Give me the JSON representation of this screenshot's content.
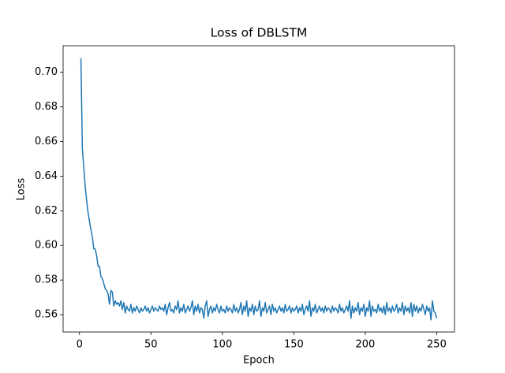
{
  "chart_data": {
    "type": "line",
    "title": "Loss of DBLSTM",
    "xlabel": "Epoch",
    "ylabel": "Loss",
    "x": [
      1,
      2,
      3,
      4,
      5,
      6,
      7,
      8,
      9,
      10,
      11,
      12,
      13,
      14,
      15,
      16,
      17,
      18,
      19,
      20,
      21,
      22,
      23,
      24,
      25,
      26,
      27,
      28,
      29,
      30,
      31,
      32,
      33,
      34,
      35,
      36,
      37,
      38,
      39,
      40,
      41,
      42,
      43,
      44,
      45,
      46,
      47,
      48,
      49,
      50,
      51,
      52,
      53,
      54,
      55,
      56,
      57,
      58,
      59,
      60,
      61,
      62,
      63,
      64,
      65,
      66,
      67,
      68,
      69,
      70,
      71,
      72,
      73,
      74,
      75,
      76,
      77,
      78,
      79,
      80,
      81,
      82,
      83,
      84,
      85,
      86,
      87,
      88,
      89,
      90,
      91,
      92,
      93,
      94,
      95,
      96,
      97,
      98,
      99,
      100,
      101,
      102,
      103,
      104,
      105,
      106,
      107,
      108,
      109,
      110,
      111,
      112,
      113,
      114,
      115,
      116,
      117,
      118,
      119,
      120,
      121,
      122,
      123,
      124,
      125,
      126,
      127,
      128,
      129,
      130,
      131,
      132,
      133,
      134,
      135,
      136,
      137,
      138,
      139,
      140,
      141,
      142,
      143,
      144,
      145,
      146,
      147,
      148,
      149,
      150,
      151,
      152,
      153,
      154,
      155,
      156,
      157,
      158,
      159,
      160,
      161,
      162,
      163,
      164,
      165,
      166,
      167,
      168,
      169,
      170,
      171,
      172,
      173,
      174,
      175,
      176,
      177,
      178,
      179,
      180,
      181,
      182,
      183,
      184,
      185,
      186,
      187,
      188,
      189,
      190,
      191,
      192,
      193,
      194,
      195,
      196,
      197,
      198,
      199,
      200,
      201,
      202,
      203,
      204,
      205,
      206,
      207,
      208,
      209,
      210,
      211,
      212,
      213,
      214,
      215,
      216,
      217,
      218,
      219,
      220,
      221,
      222,
      223,
      224,
      225,
      226,
      227,
      228,
      229,
      230,
      231,
      232,
      233,
      234,
      235,
      236,
      237,
      238,
      239,
      240,
      241,
      242,
      243,
      244,
      245,
      246,
      247,
      248,
      249,
      250
    ],
    "series": [
      {
        "color": "#1f77b4",
        "values": [
          0.708,
          0.656,
          0.645,
          0.634,
          0.626,
          0.619,
          0.614,
          0.609,
          0.605,
          0.598,
          0.598,
          0.594,
          0.588,
          0.588,
          0.582,
          0.581,
          0.578,
          0.575,
          0.574,
          0.572,
          0.566,
          0.574,
          0.573,
          0.565,
          0.568,
          0.566,
          0.567,
          0.565,
          0.568,
          0.563,
          0.567,
          0.561,
          0.565,
          0.563,
          0.562,
          0.566,
          0.561,
          0.564,
          0.562,
          0.565,
          0.563,
          0.561,
          0.564,
          0.562,
          0.563,
          0.565,
          0.562,
          0.564,
          0.561,
          0.563,
          0.565,
          0.562,
          0.564,
          0.563,
          0.562,
          0.565,
          0.563,
          0.564,
          0.562,
          0.566,
          0.56,
          0.564,
          0.567,
          0.562,
          0.563,
          0.561,
          0.565,
          0.563,
          0.568,
          0.561,
          0.564,
          0.562,
          0.566,
          0.561,
          0.563,
          0.565,
          0.562,
          0.564,
          0.568,
          0.56,
          0.565,
          0.562,
          0.566,
          0.561,
          0.564,
          0.563,
          0.558,
          0.565,
          0.568,
          0.559,
          0.563,
          0.565,
          0.561,
          0.564,
          0.562,
          0.566,
          0.563,
          0.561,
          0.565,
          0.562,
          0.563,
          0.561,
          0.565,
          0.562,
          0.564,
          0.563,
          0.561,
          0.566,
          0.562,
          0.564,
          0.561,
          0.563,
          0.567,
          0.56,
          0.565,
          0.562,
          0.568,
          0.559,
          0.564,
          0.562,
          0.566,
          0.56,
          0.565,
          0.562,
          0.563,
          0.568,
          0.559,
          0.564,
          0.562,
          0.567,
          0.561,
          0.563,
          0.565,
          0.56,
          0.566,
          0.562,
          0.564,
          0.561,
          0.563,
          0.565,
          0.562,
          0.564,
          0.561,
          0.566,
          0.562,
          0.563,
          0.565,
          0.561,
          0.564,
          0.562,
          0.563,
          0.565,
          0.561,
          0.564,
          0.562,
          0.566,
          0.56,
          0.563,
          0.565,
          0.562,
          0.568,
          0.559,
          0.564,
          0.562,
          0.566,
          0.561,
          0.563,
          0.565,
          0.562,
          0.564,
          0.561,
          0.565,
          0.562,
          0.564,
          0.563,
          0.561,
          0.565,
          0.562,
          0.564,
          0.563,
          0.561,
          0.566,
          0.562,
          0.564,
          0.561,
          0.563,
          0.565,
          0.562,
          0.568,
          0.558,
          0.565,
          0.561,
          0.564,
          0.562,
          0.567,
          0.56,
          0.564,
          0.562,
          0.566,
          0.559,
          0.564,
          0.562,
          0.568,
          0.559,
          0.565,
          0.562,
          0.563,
          0.561,
          0.566,
          0.562,
          0.564,
          0.561,
          0.565,
          0.56,
          0.567,
          0.562,
          0.564,
          0.561,
          0.565,
          0.562,
          0.563,
          0.566,
          0.561,
          0.564,
          0.562,
          0.567,
          0.56,
          0.565,
          0.562,
          0.564,
          0.561,
          0.567,
          0.559,
          0.566,
          0.562,
          0.565,
          0.561,
          0.564,
          0.562,
          0.566,
          0.563,
          0.56,
          0.565,
          0.562,
          0.564,
          0.557,
          0.568,
          0.562,
          0.561,
          0.558
        ]
      }
    ],
    "xlim": [
      -11.45,
      262.45
    ],
    "xticks": [
      0,
      50,
      100,
      150,
      200,
      250
    ],
    "ylim": [
      0.55,
      0.7153
    ],
    "yticks": [
      0.56,
      0.58,
      {
        "value": 0.6,
        "label": "0.60"
      },
      0.62,
      0.64,
      0.66,
      0.68,
      {
        "value": 0.7,
        "label": "0.70"
      }
    ]
  }
}
